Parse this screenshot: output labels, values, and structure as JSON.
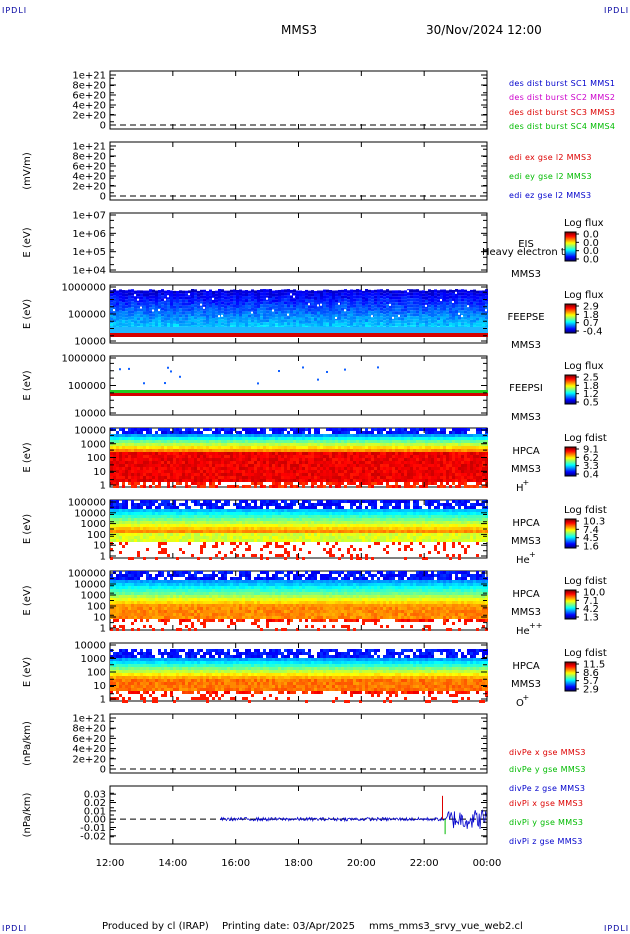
{
  "header": {
    "corner_left": "IPDLI",
    "corner_right": "IPDLI",
    "corner_bottom_left": "IPDLI",
    "corner_bottom_right": "IPDLI",
    "title": "MMS3",
    "datetime": "30/Nov/2024 12:00"
  },
  "footer": {
    "produced": "Produced by cl (IRAP)",
    "printing": "Printing date: 03/Apr/2025",
    "file": "mms_mms3_srvy_vue_web2.cl"
  },
  "colors": {
    "red": "#dd0000",
    "green": "#00bb00",
    "blue": "#0000cc",
    "magenta": "#cc00cc"
  },
  "chart_data": [
    {
      "type": "line",
      "ylabel": "",
      "y_ticks": [
        "1e+21",
        "8e+20",
        "6e+20",
        "4e+20",
        "2e+20",
        "0"
      ],
      "ylim": [
        0,
        1e+21
      ],
      "zero_dashed": true,
      "series": [
        {
          "name": "des dist burst SC1 MMS1",
          "color": "#0000cc",
          "values": []
        },
        {
          "name": "des dist burst SC2 MMS2",
          "color": "#cc00cc",
          "values": []
        },
        {
          "name": "des dist burst SC3 MMS3",
          "color": "#dd0000",
          "values": []
        },
        {
          "name": "des dist burst SC4 MMS4",
          "color": "#00bb00",
          "values": []
        }
      ]
    },
    {
      "type": "line",
      "ylabel": "(mV/m)",
      "y_ticks": [
        "1e+21",
        "8e+20",
        "6e+20",
        "4e+20",
        "2e+20",
        "0"
      ],
      "ylim": [
        0,
        1e+21
      ],
      "zero_dashed": true,
      "series": [
        {
          "name": "edi ex gse l2 MMS3",
          "color": "#dd0000",
          "values": []
        },
        {
          "name": "edi ey gse l2 MMS3",
          "color": "#00bb00",
          "values": []
        },
        {
          "name": "edi ez gse l2 MMS3",
          "color": "#0000cc",
          "values": []
        }
      ]
    },
    {
      "type": "heatmap",
      "ylabel": "E (eV)",
      "y_ticks": [
        "1e+07",
        "1e+06",
        "1e+05",
        "1e+04"
      ],
      "labels": [
        "EIS",
        "MMS3"
      ],
      "overlay_text": "Heavy electron to",
      "colorbar": {
        "title": "Log flux",
        "ticks": [
          "0.0",
          "0.0",
          "0.0",
          "0.0"
        ]
      },
      "pattern": "empty"
    },
    {
      "type": "heatmap",
      "ylabel": "E (eV)",
      "y_ticks": [
        "1000000",
        "100000",
        "10000"
      ],
      "labels": [
        "FEEPSE",
        "MMS3"
      ],
      "colorbar": {
        "title": "Log flux",
        "ticks": [
          "2.9",
          "1.8",
          "0.7",
          "-0.4"
        ]
      },
      "pattern": "feepse"
    },
    {
      "type": "heatmap",
      "ylabel": "E (eV)",
      "y_ticks": [
        "1000000",
        "100000",
        "10000"
      ],
      "labels": [
        "FEEPSI",
        "MMS3"
      ],
      "colorbar": {
        "title": "Log flux",
        "ticks": [
          "2.5",
          "1.8",
          "1.2",
          "0.5"
        ]
      },
      "pattern": "feepsi"
    },
    {
      "type": "heatmap",
      "ylabel": "E (eV)",
      "y_ticks": [
        "10000",
        "1000",
        "100",
        "10",
        "1"
      ],
      "labels": [
        "HPCA",
        "MMS3"
      ],
      "species": "H",
      "charge": "+",
      "colorbar": {
        "title": "Log fdist",
        "ticks": [
          "9.1",
          "6.2",
          "3.3",
          "0.4"
        ]
      },
      "pattern": "hplus"
    },
    {
      "type": "heatmap",
      "ylabel": "E (eV)",
      "y_ticks": [
        "100000",
        "10000",
        "1000",
        "100",
        "10",
        "1"
      ],
      "labels": [
        "HPCA",
        "MMS3"
      ],
      "species": "He",
      "charge": "+",
      "colorbar": {
        "title": "Log fdist",
        "ticks": [
          "10.3",
          "7.4",
          "4.5",
          "1.6"
        ]
      },
      "pattern": "heplus"
    },
    {
      "type": "heatmap",
      "ylabel": "E (eV)",
      "y_ticks": [
        "100000",
        "10000",
        "1000",
        "100",
        "10",
        "1"
      ],
      "labels": [
        "HPCA",
        "MMS3"
      ],
      "species": "He",
      "charge": "++",
      "colorbar": {
        "title": "Log fdist",
        "ticks": [
          "10.0",
          "7.1",
          "4.2",
          "1.3"
        ]
      },
      "pattern": "heplusplus"
    },
    {
      "type": "heatmap",
      "ylabel": "E (eV)",
      "y_ticks": [
        "10000",
        "1000",
        "100",
        "10",
        "1"
      ],
      "labels": [
        "HPCA",
        "MMS3"
      ],
      "species": "O",
      "charge": "+",
      "colorbar": {
        "title": "Log fdist",
        "ticks": [
          "11.5",
          "8.6",
          "5.7",
          "2.9"
        ]
      },
      "pattern": "oplus"
    },
    {
      "type": "line",
      "ylabel": "(nPa/km)",
      "y_ticks": [
        "1e+21",
        "8e+20",
        "6e+20",
        "4e+20",
        "2e+20",
        "0"
      ],
      "ylim": [
        0,
        1e+21
      ],
      "zero_dashed": true,
      "series": [
        {
          "name": "divPe x gse MMS3",
          "color": "#dd0000",
          "values": []
        },
        {
          "name": "divPe y gse MMS3",
          "color": "#00bb00",
          "values": []
        },
        {
          "name": "divPe z gse MMS3",
          "color": "#0000cc",
          "values": []
        }
      ]
    },
    {
      "type": "line",
      "ylabel": "(nPa/km)",
      "y_ticks": [
        "0.03",
        "0.02",
        "0.01",
        "0.00",
        "-0.01",
        "-0.02"
      ],
      "ylim": [
        -0.025,
        0.035
      ],
      "zero_dashed": true,
      "data_start": "15:30",
      "series": [
        {
          "name": "divPi x gse MMS3",
          "color": "#dd0000",
          "spikes": [
            {
              "t": "22:35",
              "v": 0.028
            }
          ]
        },
        {
          "name": "divPi y gse MMS3",
          "color": "#00bb00",
          "spikes": [
            {
              "t": "22:40",
              "v": -0.018
            }
          ]
        },
        {
          "name": "divPi z gse MMS3",
          "color": "#0000cc",
          "noise_amplitude": 0.002,
          "noise_amplitude_late": 0.012
        }
      ]
    }
  ],
  "x_axis": {
    "start": "12:00",
    "end": "00:00",
    "ticks": [
      "12:00",
      "14:00",
      "16:00",
      "18:00",
      "20:00",
      "22:00",
      "00:00"
    ]
  }
}
